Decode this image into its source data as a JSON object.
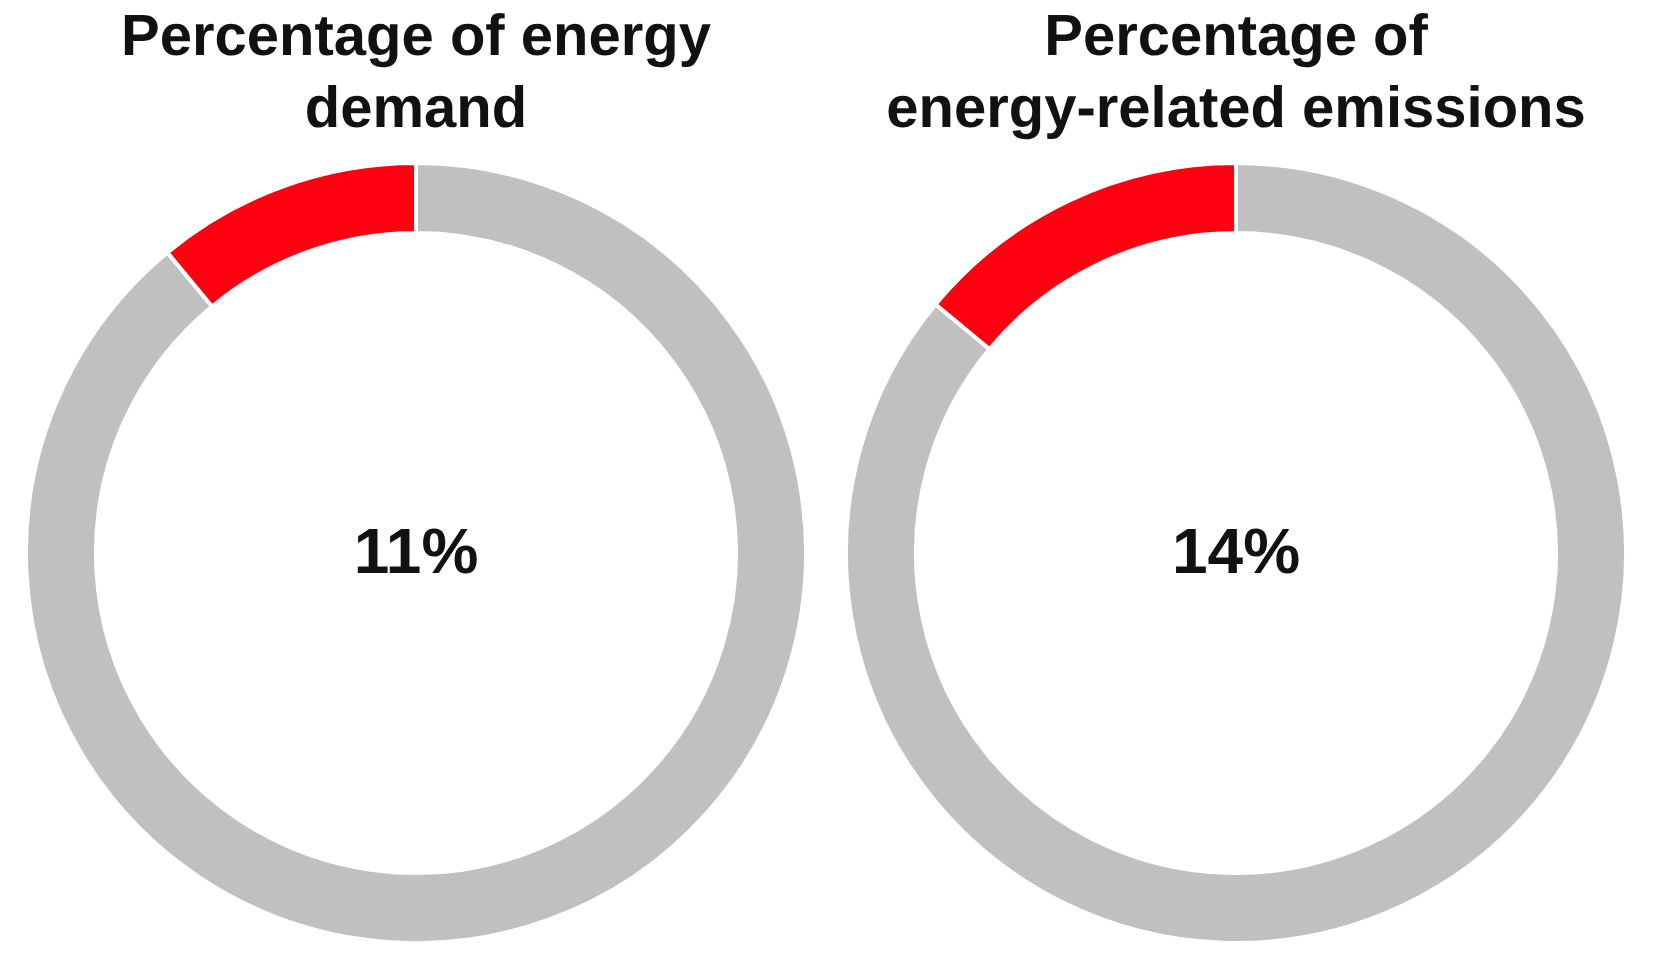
{
  "chart_data": [
    {
      "type": "donut",
      "title": "Percentage of energy demand",
      "categories": [
        null,
        null
      ],
      "values": [
        89,
        11
      ],
      "colors": [
        "#c0c0c0",
        "#ff0010"
      ],
      "annotations": [
        "11%"
      ]
    },
    {
      "type": "donut",
      "title": "Percentage of energy-related emissions",
      "categories": [
        null,
        null
      ],
      "values": [
        86,
        14
      ],
      "colors": [
        "#c0c0c0",
        "#ff0010"
      ],
      "annotations": [
        "14%"
      ]
    }
  ]
}
